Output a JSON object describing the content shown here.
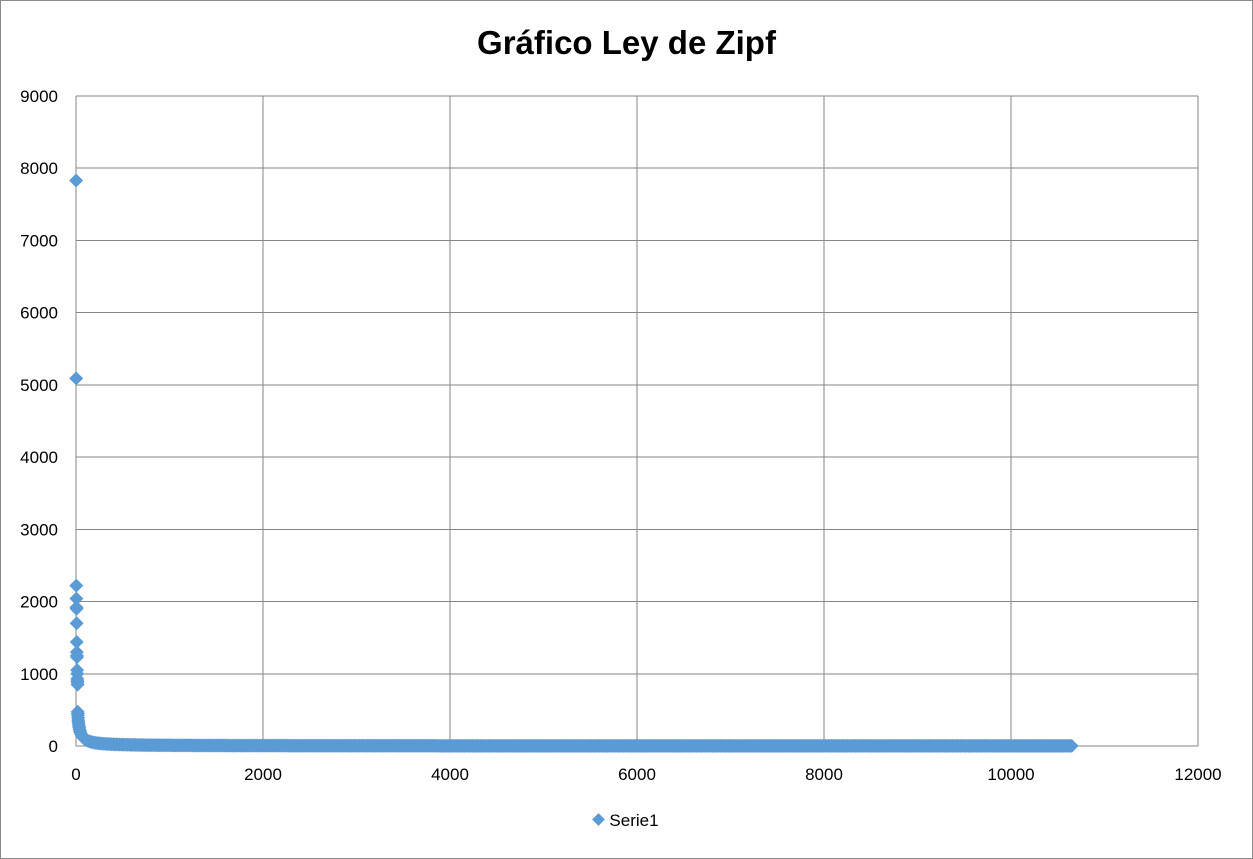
{
  "chart_data": {
    "type": "scatter",
    "title": "Gráfico Ley de Zipf",
    "xlabel": "",
    "ylabel": "",
    "xlim": [
      0,
      12000
    ],
    "ylim": [
      0,
      9000
    ],
    "x_ticks": [
      "0",
      "2000",
      "4000",
      "6000",
      "8000",
      "10000",
      "12000"
    ],
    "y_ticks": [
      "0",
      "1000",
      "2000",
      "3000",
      "4000",
      "5000",
      "6000",
      "7000",
      "8000",
      "9000"
    ],
    "grid": true,
    "legend_position": "bottom",
    "marker": "diamond",
    "color": "#5b9bd5",
    "series": [
      {
        "name": "Serie1",
        "x_range": [
          1,
          10650
        ],
        "head_points": [
          [
            1,
            7830
          ],
          [
            2,
            5090
          ],
          [
            3,
            2220
          ],
          [
            4,
            2040
          ],
          [
            5,
            1920
          ],
          [
            6,
            1900
          ],
          [
            7,
            1700
          ],
          [
            8,
            1440
          ],
          [
            9,
            1300
          ],
          [
            10,
            1250
          ],
          [
            11,
            1230
          ],
          [
            12,
            1050
          ],
          [
            13,
            1000
          ],
          [
            14,
            930
          ],
          [
            15,
            900
          ],
          [
            16,
            880
          ],
          [
            17,
            850
          ]
        ]
      }
    ]
  }
}
